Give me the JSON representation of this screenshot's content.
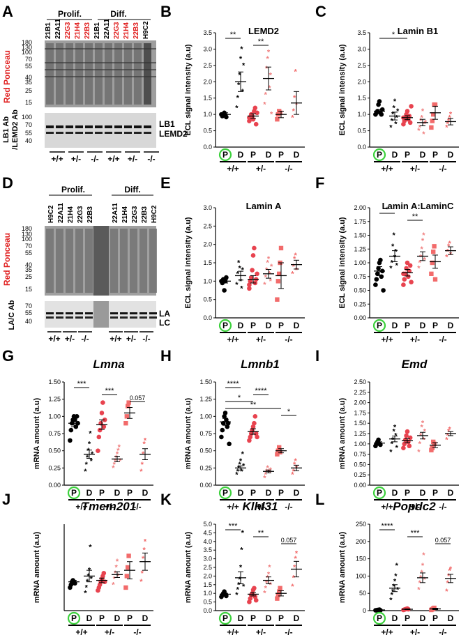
{
  "colors": {
    "wt": "#000000",
    "het": "#f08080",
    "het_dark": "#e8434f",
    "ko": "#f26b6b",
    "green": "#3cd03c",
    "red_label": "#e02020"
  },
  "panel_letters": [
    "A",
    "B",
    "C",
    "D",
    "E",
    "F",
    "G",
    "H",
    "I",
    "J",
    "K",
    "L"
  ],
  "blotA": {
    "group_prolif": "Prolif.",
    "group_diff": "Diff.",
    "lanes": [
      "21B1",
      "22A11",
      "22G3",
      "21H4",
      "22B3",
      "21B1",
      "22A11",
      "22G3",
      "21H4",
      "22B3",
      "H9C2"
    ],
    "lane_red": [
      false,
      false,
      true,
      true,
      true,
      false,
      false,
      true,
      true,
      true,
      false
    ],
    "markers_top": [
      "180",
      "130",
      "100",
      "70",
      "55",
      "40",
      "35",
      "25",
      "15"
    ],
    "markers_bottom": [
      "100",
      "70",
      "55",
      "40"
    ],
    "ylabel_top": "Red Ponceau",
    "ylabel_bottom_1": "LB1 Ab",
    "ylabel_bottom_2": "/LEMD2 Ab",
    "band_labels": [
      "LB1",
      "LEMD2"
    ],
    "genotypes": [
      "+/+",
      "+/-",
      "-/-",
      "+/+",
      "+/-",
      "-/-"
    ]
  },
  "blotD": {
    "group_prolif": "Prolif.",
    "group_diff": "Diff.",
    "lanes": [
      "H9C2",
      "22A11",
      "21H4",
      "22G3",
      "22B3",
      "22A11",
      "21H4",
      "22G3",
      "22B3",
      "H9C2"
    ],
    "markers_top": [
      "180",
      "130",
      "100",
      "70",
      "55",
      "40",
      "35",
      "25",
      "15"
    ],
    "markers_bottom": [
      "70",
      "55",
      "40"
    ],
    "ylabel_top": "Red Ponceau",
    "ylabel_bottom": "LA/C Ab",
    "band_labels": [
      "LA",
      "LC"
    ],
    "genotypes": [
      "+/+",
      "+/-",
      "-/-",
      "+/+",
      "+/-",
      "-/-"
    ]
  },
  "chart_data": [
    {
      "panel": "B",
      "type": "scatter",
      "title": "LEMD2",
      "ylabel": "ECL signal intensity (a.u)",
      "ylim": [
        0,
        3.5
      ],
      "yticks": [
        "0.0",
        "0.5",
        "1.0",
        "1.5",
        "2.0",
        "2.5",
        "3.0",
        "3.5"
      ],
      "categories": [
        "P",
        "D",
        "P",
        "D",
        "P",
        "D"
      ],
      "genotypes": [
        "+/+",
        "+/-",
        "-/-"
      ],
      "means": [
        1.0,
        2.0,
        0.95,
        2.1,
        1.0,
        1.35
      ],
      "sems": [
        0.05,
        0.3,
        0.07,
        0.35,
        0.1,
        0.35
      ],
      "points": [
        [
          1.0,
          0.95,
          1.0,
          1.05,
          0.98,
          0.92
        ],
        [
          1.2,
          1.5,
          1.9,
          2.2,
          2.7,
          3.0,
          1.7,
          2.5
        ],
        [
          0.8,
          0.9,
          1.0,
          0.95,
          0.85,
          1.1,
          1.2,
          0.7,
          1.05,
          0.9
        ],
        [
          1.3,
          1.6,
          2.4,
          2.7,
          2.9,
          1.8,
          2.2,
          1.0
        ],
        [
          0.85,
          1.0,
          1.1,
          1.05
        ],
        [
          0.9,
          1.1,
          1.5,
          2.3,
          1.3
        ]
      ],
      "significance": [
        {
          "from": 0,
          "to": 1,
          "label": "**"
        },
        {
          "from": 2,
          "to": 3,
          "label": "**"
        }
      ]
    },
    {
      "panel": "C",
      "type": "scatter",
      "title": "Lamin B1",
      "ylabel": "ECL signal intensity (a.u)",
      "ylim": [
        0,
        3.5
      ],
      "yticks": [
        "0.0",
        "0.5",
        "1.0",
        "1.5",
        "2.0",
        "2.5",
        "3.0",
        "3.5"
      ],
      "categories": [
        "P",
        "D",
        "P",
        "D",
        "P",
        "D"
      ],
      "genotypes": [
        "+/+",
        "+/-",
        "-/-"
      ],
      "means": [
        1.1,
        0.95,
        0.9,
        0.75,
        1.05,
        0.78
      ],
      "sems": [
        0.05,
        0.12,
        0.06,
        0.1,
        0.2,
        0.1
      ],
      "points": [
        [
          1.0,
          1.05,
          1.1,
          1.3,
          1.4,
          1.05,
          1.0,
          1.15
        ],
        [
          0.6,
          0.8,
          1.0,
          1.2,
          1.4,
          0.7,
          0.9,
          1.1
        ],
        [
          0.7,
          0.8,
          0.9,
          1.0,
          1.1,
          0.85,
          0.95,
          0.75,
          1.25,
          0.9
        ],
        [
          0.5,
          0.6,
          0.8,
          0.9,
          1.1,
          0.4,
          0.7,
          0.75
        ],
        [
          0.6,
          0.8,
          1.0,
          1.3,
          1.3
        ],
        [
          0.6,
          0.7,
          0.8,
          0.9,
          1.0
        ]
      ],
      "significance": [
        {
          "from": 0,
          "to": 2,
          "label": "*"
        }
      ]
    },
    {
      "panel": "E",
      "type": "scatter",
      "title": "Lamin A",
      "ylabel": "ECL signal intensity (a.u)",
      "ylim": [
        0,
        3.0
      ],
      "yticks": [
        "0.0",
        "0.5",
        "1.0",
        "1.5",
        "2.0",
        "2.5",
        "3.0"
      ],
      "categories": [
        "P",
        "D",
        "P",
        "D",
        "P",
        "D"
      ],
      "genotypes": [
        "+/+",
        "+/-",
        "-/-"
      ],
      "means": [
        1.0,
        1.15,
        1.05,
        1.2,
        1.15,
        1.45
      ],
      "sems": [
        0.05,
        0.12,
        0.1,
        0.12,
        0.35,
        0.12
      ],
      "points": [
        [
          1.0,
          0.95,
          1.05,
          0.75,
          1.0,
          1.1
        ],
        [
          0.9,
          1.2,
          1.5,
          1.35,
          1.0,
          0.8,
          1.3
        ],
        [
          0.8,
          1.0,
          1.1,
          1.3,
          1.7,
          1.9,
          0.95,
          1.05,
          1.2,
          0.9
        ],
        [
          0.9,
          1.1,
          1.3,
          1.5,
          1.6,
          1.2,
          1.0,
          1.4
        ],
        [
          0.5,
          1.0,
          1.2,
          1.5,
          1.9
        ],
        [
          1.2,
          1.4,
          1.6,
          1.7,
          1.3
        ]
      ],
      "significance": []
    },
    {
      "panel": "F",
      "type": "scatter",
      "title": "Lamin A:LaminC",
      "ylabel": "ECL signal intensity (a.u)",
      "ylim": [
        0,
        2.0
      ],
      "yticks": [
        "0.00",
        "0.25",
        "0.50",
        "0.75",
        "1.00",
        "1.25",
        "1.50",
        "1.75",
        "2.00"
      ],
      "categories": [
        "P",
        "D",
        "P",
        "D",
        "P",
        "D"
      ],
      "genotypes": [
        "+/+",
        "+/-",
        "-/-"
      ],
      "means": [
        0.85,
        1.12,
        0.82,
        1.12,
        1.02,
        1.22
      ],
      "sems": [
        0.08,
        0.1,
        0.06,
        0.08,
        0.12,
        0.07
      ],
      "points": [
        [
          0.6,
          0.7,
          0.8,
          0.9,
          1.0,
          1.05,
          0.75,
          0.85,
          0.5
        ],
        [
          0.9,
          1.0,
          1.3,
          1.5,
          1.1,
          1.2,
          0.95
        ],
        [
          0.6,
          0.7,
          0.8,
          0.9,
          1.0,
          0.75,
          0.85,
          0.95,
          0.65,
          0.8
        ],
        [
          0.9,
          1.0,
          1.1,
          1.25,
          1.4,
          1.5,
          1.05
        ],
        [
          0.8,
          1.0,
          1.2,
          1.3,
          0.7
        ],
        [
          1.1,
          1.2,
          1.3,
          1.35,
          1.15
        ]
      ],
      "significance": [
        {
          "from": 0,
          "to": 1,
          "label": "*"
        },
        {
          "from": 2,
          "to": 3,
          "label": "**"
        }
      ]
    },
    {
      "panel": "G",
      "type": "scatter",
      "title": "Lmna",
      "title_italic": true,
      "ylabel": "mRNA amount (a.u)",
      "ylim": [
        0,
        1.5
      ],
      "yticks": [
        "0.00",
        "0.25",
        "0.50",
        "0.75",
        "1.00",
        "1.25",
        "1.50"
      ],
      "categories": [
        "P",
        "D",
        "P",
        "D",
        "P",
        "D"
      ],
      "genotypes": [
        "+/+",
        "+/-",
        "-/-"
      ],
      "means": [
        0.9,
        0.45,
        0.88,
        0.38,
        1.05,
        0.45
      ],
      "sems": [
        0.05,
        0.06,
        0.07,
        0.04,
        0.08,
        0.08
      ],
      "points": [
        [
          0.65,
          0.8,
          0.9,
          0.95,
          1.0,
          0.95,
          0.85,
          1.0,
          0.9
        ],
        [
          0.2,
          0.3,
          0.4,
          0.5,
          0.6,
          0.75,
          0.35,
          0.45
        ],
        [
          0.5,
          0.7,
          0.8,
          0.9,
          1.05,
          1.2,
          0.85,
          0.95
        ],
        [
          0.25,
          0.3,
          0.35,
          0.4,
          0.45,
          0.5,
          0.55,
          0.35
        ],
        [
          0.9,
          1.0,
          1.15,
          1.2
        ],
        [
          0.2,
          0.3,
          0.45,
          0.6,
          0.65
        ]
      ],
      "significance": [
        {
          "from": 0,
          "to": 1,
          "label": "***"
        },
        {
          "from": 2,
          "to": 3,
          "label": "***"
        },
        {
          "from": 4,
          "to": 5,
          "label": "0.057"
        }
      ]
    },
    {
      "panel": "H",
      "type": "scatter",
      "title": "Lmnb1",
      "title_italic": true,
      "ylabel": "mRNA amount (a.u)",
      "ylim": [
        0,
        1.5
      ],
      "yticks": [
        "0.00",
        "0.25",
        "0.50",
        "0.75",
        "1.00",
        "1.25",
        "1.50"
      ],
      "categories": [
        "P",
        "D",
        "P",
        "D",
        "P",
        "D"
      ],
      "genotypes": [
        "+/+",
        "+/-",
        "-/-"
      ],
      "means": [
        0.92,
        0.25,
        0.78,
        0.2,
        0.5,
        0.25
      ],
      "sems": [
        0.05,
        0.03,
        0.04,
        0.02,
        0.03,
        0.04
      ],
      "points": [
        [
          0.7,
          0.8,
          0.9,
          1.0,
          1.05,
          0.95,
          0.85,
          0.9,
          0.6
        ],
        [
          0.15,
          0.2,
          0.25,
          0.3,
          0.35,
          0.2,
          0.45,
          0.28
        ],
        [
          0.65,
          0.7,
          0.75,
          0.8,
          0.85,
          0.9,
          1.0,
          0.75,
          0.7
        ],
        [
          0.1,
          0.15,
          0.2,
          0.25,
          0.2,
          0.18,
          0.22
        ],
        [
          0.45,
          0.5,
          0.55,
          0.48
        ],
        [
          0.15,
          0.2,
          0.3,
          0.35,
          0.25
        ]
      ],
      "significance": [
        {
          "from": 0,
          "to": 1,
          "label": "****"
        },
        {
          "from": 2,
          "to": 3,
          "label": "****"
        },
        {
          "from": 0,
          "to": 2,
          "label": "*"
        },
        {
          "from": 0,
          "to": 4,
          "label": "**"
        },
        {
          "from": 4,
          "to": 5,
          "label": "*"
        }
      ]
    },
    {
      "panel": "I",
      "type": "scatter",
      "title": "Emd",
      "title_italic": true,
      "ylabel": "mRNA amount (a.u)",
      "ylim": [
        0,
        2.5
      ],
      "yticks": [
        "0.00",
        "0.25",
        "0.50",
        "0.75",
        "1.00",
        "1.25",
        "1.50",
        "1.75",
        "2.00",
        "2.25",
        "2.50"
      ],
      "categories": [
        "P",
        "D",
        "P",
        "D",
        "P",
        "D"
      ],
      "genotypes": [
        "+/+",
        "+/-",
        "-/-"
      ],
      "means": [
        1.02,
        1.12,
        1.08,
        1.2,
        0.97,
        1.25
      ],
      "sems": [
        0.03,
        0.07,
        0.05,
        0.08,
        0.06,
        0.05
      ],
      "points": [
        [
          0.95,
          1.0,
          1.05,
          1.1,
          1.0,
          0.98
        ],
        [
          0.8,
          1.0,
          1.1,
          1.3,
          1.4,
          1.2,
          0.9
        ],
        [
          0.9,
          1.0,
          1.1,
          1.2,
          1.3,
          1.05,
          0.95,
          1.15
        ],
        [
          0.8,
          1.0,
          1.2,
          1.4,
          1.5,
          1.1,
          1.3
        ],
        [
          0.85,
          0.9,
          1.05,
          1.0
        ],
        [
          1.1,
          1.2,
          1.3,
          1.35
        ]
      ],
      "significance": []
    },
    {
      "panel": "J",
      "type": "scatter",
      "title": "Tmem201",
      "title_italic": true,
      "ylabel": "mRNA amount (a.u)",
      "ylim": [
        0,
        3.0
      ],
      "yticks": [],
      "categories": [
        "P",
        "D",
        "P",
        "D",
        "P",
        "D"
      ],
      "genotypes": [
        "+/+",
        "+/-",
        "-/-"
      ],
      "means": [
        1.0,
        1.2,
        1.05,
        1.25,
        1.4,
        1.7
      ],
      "sems": [
        0.05,
        0.2,
        0.08,
        0.1,
        0.3,
        0.3
      ],
      "points": [
        [
          0.8,
          0.9,
          1.0,
          1.05,
          1.0,
          0.95
        ],
        [
          0.6,
          0.8,
          1.0,
          1.2,
          1.4,
          2.2,
          1.1
        ],
        [
          0.7,
          0.8,
          0.9,
          1.0,
          1.1,
          1.2,
          1.3,
          1.0
        ],
        [
          0.9,
          1.1,
          1.3,
          1.5,
          1.7,
          1.2
        ],
        [
          0.8,
          1.2,
          1.5,
          1.9
        ],
        [
          1.0,
          1.3,
          1.8,
          2.1,
          2.4
        ]
      ],
      "significance": []
    },
    {
      "panel": "K",
      "type": "scatter",
      "title": "Klhl31",
      "title_italic": true,
      "ylabel": "mRNA amount (a.u)",
      "ylim": [
        0,
        5.0
      ],
      "yticks": [
        "0.0",
        "0.5",
        "1.0",
        "1.5",
        "2.0",
        "2.5",
        "3.0",
        "3.5",
        "4.0",
        "4.5",
        "5.0"
      ],
      "categories": [
        "P",
        "D",
        "P",
        "D",
        "P",
        "D"
      ],
      "genotypes": [
        "+/+",
        "+/-",
        "-/-"
      ],
      "means": [
        0.95,
        1.9,
        0.95,
        1.75,
        1.0,
        2.4
      ],
      "sems": [
        0.05,
        0.35,
        0.1,
        0.2,
        0.15,
        0.45
      ],
      "points": [
        [
          0.8,
          0.9,
          1.0,
          1.1,
          0.95,
          0.85
        ],
        [
          0.9,
          1.2,
          1.5,
          1.8,
          2.5,
          3.5,
          4.5,
          1.4
        ],
        [
          0.5,
          0.7,
          0.9,
          1.0,
          1.2,
          1.3,
          0.8,
          0.6
        ],
        [
          1.0,
          1.3,
          1.6,
          1.9,
          2.1,
          2.5,
          1.5
        ],
        [
          0.7,
          0.9,
          1.1,
          1.3
        ],
        [
          1.4,
          1.9,
          2.5,
          3.0,
          3.3
        ]
      ],
      "significance": [
        {
          "from": 0,
          "to": 1,
          "label": "***"
        },
        {
          "from": 2,
          "to": 3,
          "label": "**"
        },
        {
          "from": 4,
          "to": 5,
          "label": "0.057"
        }
      ]
    },
    {
      "panel": "L",
      "type": "scatter",
      "title": "Popdc2",
      "title_italic": true,
      "ylabel": "mRNA amount (a.u)",
      "ylim": [
        0,
        250
      ],
      "yticks": [
        "0",
        "50",
        "100",
        "150",
        "200",
        "250"
      ],
      "categories": [
        "P",
        "D",
        "P",
        "D",
        "P",
        "D"
      ],
      "genotypes": [
        "+/+",
        "+/-",
        "-/-"
      ],
      "means": [
        2,
        65,
        4,
        95,
        5,
        93
      ],
      "sems": [
        0.5,
        10,
        1,
        14,
        2,
        12
      ],
      "points": [
        [
          1,
          1,
          2,
          2,
          3,
          1
        ],
        [
          30,
          45,
          55,
          70,
          85,
          100,
          130,
          60
        ],
        [
          2,
          3,
          4,
          5,
          6,
          4
        ],
        [
          60,
          80,
          95,
          110,
          130,
          160,
          90
        ],
        [
          2,
          4,
          6,
          8
        ],
        [
          55,
          80,
          100,
          115,
          120
        ]
      ],
      "significance": [
        {
          "from": 0,
          "to": 1,
          "label": "****"
        },
        {
          "from": 2,
          "to": 3,
          "label": "***"
        },
        {
          "from": 4,
          "to": 5,
          "label": "0.057"
        }
      ]
    }
  ]
}
